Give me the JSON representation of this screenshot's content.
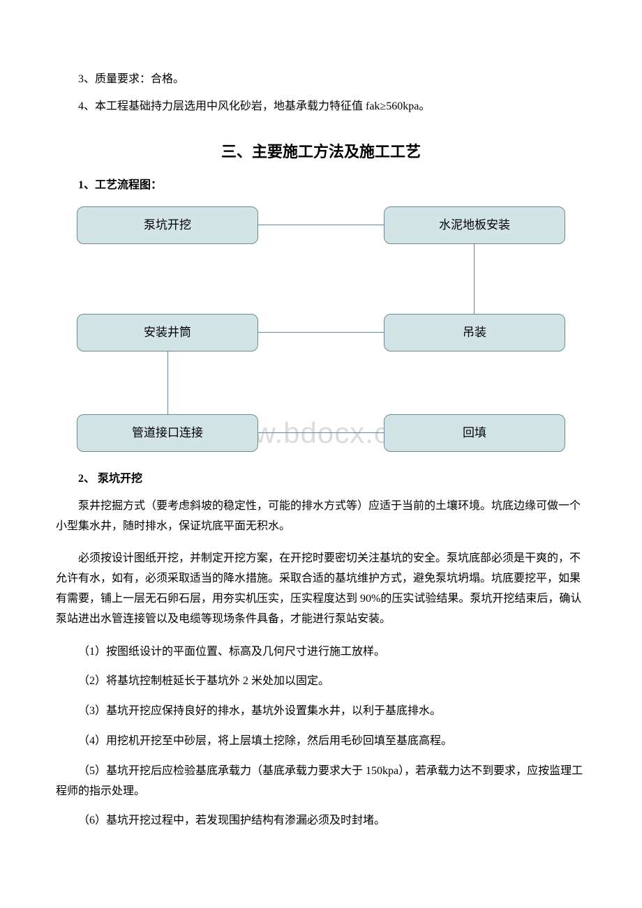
{
  "intro": {
    "line1": "3、质量要求：合格。",
    "line2": "4、本工程基础持力层选用中风化砂岩，地基承载力特征值 fak≥560kpa。"
  },
  "section_title": "三、主要施工方法及施工工艺",
  "sub1_title": "1、工艺流程图：",
  "flowchart": {
    "box1": "泵坑开挖",
    "box2": "水泥地板安装",
    "box3": "安装井筒",
    "box4": "吊装",
    "box5": "管道接口连接",
    "box6": "回填",
    "box_bg": "#d3e4e6",
    "box_border": "#6a8a95"
  },
  "watermark": "www.bdocx.com",
  "sub2_title": "2、 泵坑开挖",
  "para1": "泵井挖掘方式（要考虑斜坡的稳定性，可能的排水方式等）应适于当前的土壤环境。坑底边缘可做一个小型集水井，随时排水，保证坑底平面无积水。",
  "para2": "必须按设计图纸开挖，并制定开挖方案，在开挖时要密切关注基坑的安全。泵坑底部必须是干爽的，不允许有水，如有，必须采取适当的降水措施。采取合适的基坑维护方式，避免泵坑坍塌。坑底要挖平，如果有需要，铺上一层无石卵石层，用夯实机压实，压实程度达到 90%的压实试验结果。泵坑开挖结束后，确认泵站进出水管连接管以及电缆等现场条件具备，才能进行泵站安装。",
  "items": {
    "i1": "（1）按图纸设计的平面位置、标高及几何尺寸进行施工放样。",
    "i2": "（2）将基坑控制桩延长于基坑外 2 米处加以固定。",
    "i3": "（3）基坑开挖应保持良好的排水，基坑外设置集水井，以利于基底排水。",
    "i4": "（4）用挖机开挖至中砂层，将上层填土挖除，然后用毛砂回填至基底高程。",
    "i5": "（5）基坑开挖后应检验基底承载力（基底承载力要求大于 150kpa），若承载力达不到要求，应按监理工程师的指示处理。",
    "i6": "（6）基坑开挖过程中，若发现围护结构有渗漏必须及时封堵。"
  }
}
